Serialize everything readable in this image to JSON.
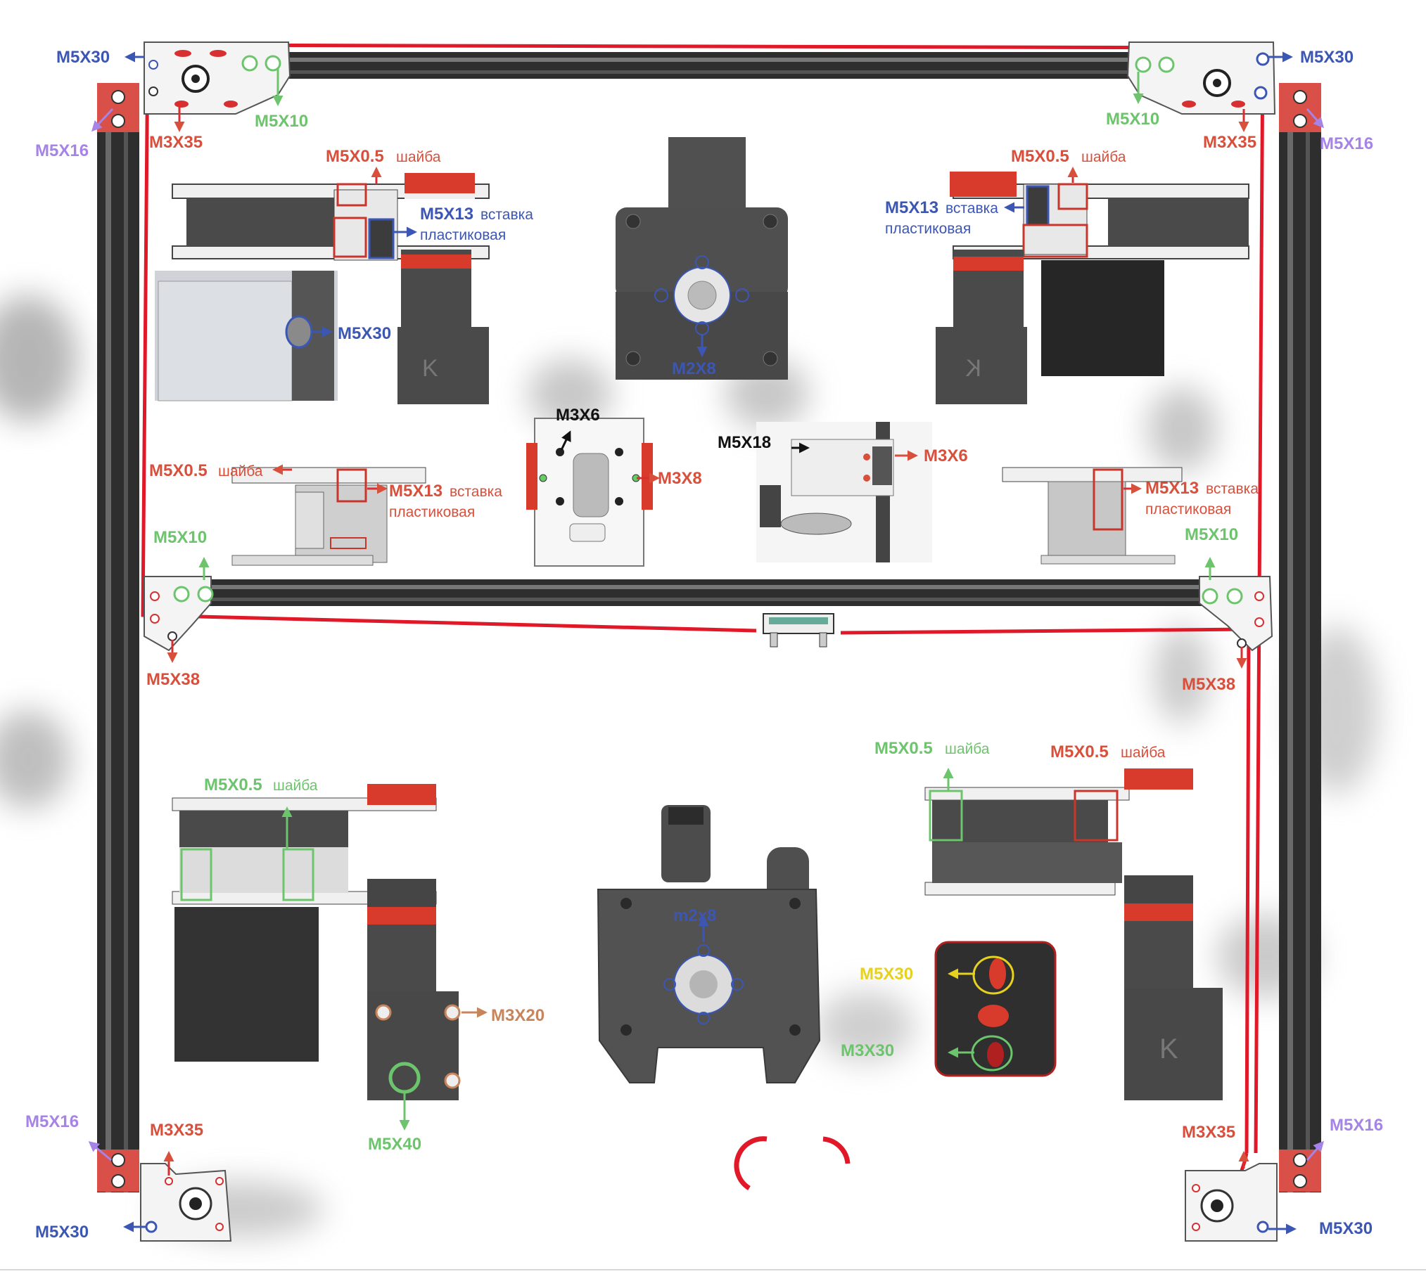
{
  "colors": {
    "frame_red": "#e01828",
    "extrusion": "#3a3a3a",
    "blue_label": "#3c56b4",
    "green_label": "#6cc46c",
    "purple_label": "#a683e6",
    "red_label": "#d8503c",
    "black_label": "#111111",
    "yellow_label": "#e6d21e",
    "tan_label": "#c8845a"
  },
  "labels": {
    "tl_m5x30": "M5X30",
    "tl_m5x10": "M5X10",
    "tl_m5x16": "M5X16",
    "tl_m3x35": "M3X35",
    "tr_m5x30": "M5X30",
    "tr_m5x10": "M5X10",
    "tr_m5x16": "M5X16",
    "tr_m3x35": "M3X35",
    "a_washer_code": "M5X0.5",
    "a_washer_word": "шайба",
    "a_insert_code": "M5X13",
    "a_insert_word": "вставка",
    "a_insert_line2": "пластиковая",
    "a_m5x30": "M5X30",
    "b_m2x8": "M2X8",
    "c_washer_code": "M5X0.5",
    "c_washer_word": "шайба",
    "c_insert_code": "M5X13",
    "c_insert_word": "вставка",
    "c_insert_line2": "пластиковая",
    "d_washer_code": "M5X0.5",
    "d_washer_word": "шайба",
    "d_insert_code": "M5X13",
    "d_insert_word": "вставка",
    "d_insert_line2": "пластиковая",
    "e_m3x6": "M3X6",
    "e_m3x8": "M3X8",
    "f_m5x18": "M5X18",
    "f_m3x6": "M3X6",
    "g_insert_code": "M5X13",
    "g_insert_word": "вставка",
    "g_insert_line2": "пластиковая",
    "ml_m5x10": "M5X10",
    "mr_m5x10": "M5X10",
    "ml_m5x38": "M5X38",
    "mr_m5x38": "M5X38",
    "h_washer_code": "M5X0.5",
    "h_washer_word": "шайба",
    "h_m3x20": "M3X20",
    "h_m5x40": "M5X40",
    "i_m2x8": "m2x8",
    "j_washer_g_code": "M5X0.5",
    "j_washer_g_word": "шайба",
    "j_washer_r_code": "M5X0.5",
    "j_washer_r_word": "шайба",
    "j_m5x30": "M5X30",
    "j_m3x30": "M3X30",
    "bl_m5x16": "M5X16",
    "bl_m3x35": "M3X35",
    "bl_m5x30": "M5X30",
    "br_m3x35": "M3X35",
    "br_m5x16": "M5X16",
    "br_m5x30": "M5X30"
  },
  "icons": {
    "logo_k": "K",
    "logo_k_mirrored": "K"
  }
}
